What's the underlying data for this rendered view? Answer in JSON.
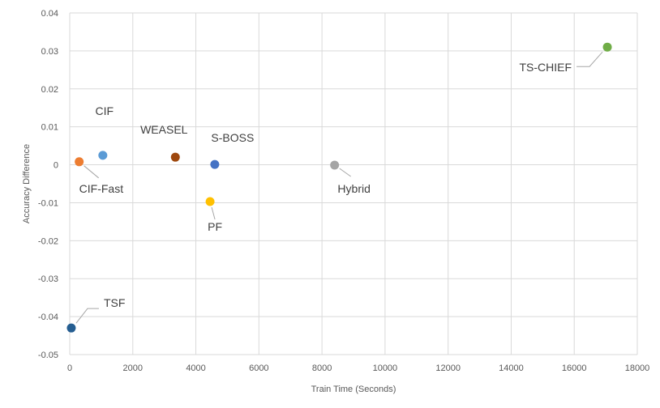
{
  "chart_data": {
    "type": "scatter",
    "xlabel": "Train Time (Seconds)",
    "ylabel": "Accuracy Difference",
    "xlim": [
      0,
      18000
    ],
    "ylim": [
      -0.05,
      0.04
    ],
    "x_ticks": [
      0,
      2000,
      4000,
      6000,
      8000,
      10000,
      12000,
      14000,
      16000,
      18000
    ],
    "y_ticks": [
      0.04,
      0.03,
      0.02,
      0.01,
      0,
      -0.01,
      -0.02,
      -0.03,
      -0.04,
      -0.05
    ],
    "y_tick_labels": [
      "0.04",
      "0.03",
      "0.02",
      "0.01",
      "0",
      "-0.01",
      "-0.02",
      "-0.03",
      "-0.04",
      "-0.05"
    ],
    "grid": true,
    "points": [
      {
        "label": "TSF",
        "x": 50,
        "y": -0.043,
        "color": "#255e91"
      },
      {
        "label": "CIF-Fast",
        "x": 300,
        "y": 0.0008,
        "color": "#ed7d31"
      },
      {
        "label": "CIF",
        "x": 1050,
        "y": 0.0025,
        "color": "#5b9bd5"
      },
      {
        "label": "WEASEL",
        "x": 3350,
        "y": 0.002,
        "color": "#9e480e"
      },
      {
        "label": "PF",
        "x": 4450,
        "y": -0.0097,
        "color": "#ffc000"
      },
      {
        "label": "S-BOSS",
        "x": 4600,
        "y": 0.0001,
        "color": "#4472c4"
      },
      {
        "label": "Hybrid",
        "x": 8400,
        "y": -0.0001,
        "color": "#a5a5a5"
      },
      {
        "label": "TS-CHIEF",
        "x": 17050,
        "y": 0.031,
        "color": "#70ad47"
      }
    ]
  }
}
